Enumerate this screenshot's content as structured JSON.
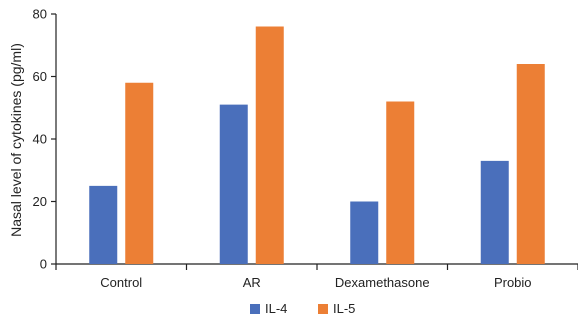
{
  "chart_data": {
    "type": "bar",
    "title": "",
    "xlabel": "",
    "ylabel": "Nasal level of cytokines  (pg/ml)",
    "categories": [
      "Control",
      "AR",
      "Dexamethasone",
      "Probio"
    ],
    "series": [
      {
        "name": "IL-4",
        "color": "#4a6fbb",
        "values": [
          25,
          51,
          20,
          33
        ]
      },
      {
        "name": "IL-5",
        "color": "#ec7f35",
        "values": [
          58,
          76,
          52,
          64
        ]
      }
    ],
    "ylim": [
      0,
      80
    ],
    "yticks": [
      0,
      20,
      40,
      60,
      80
    ],
    "grid": false,
    "legend": "bottom-center"
  }
}
